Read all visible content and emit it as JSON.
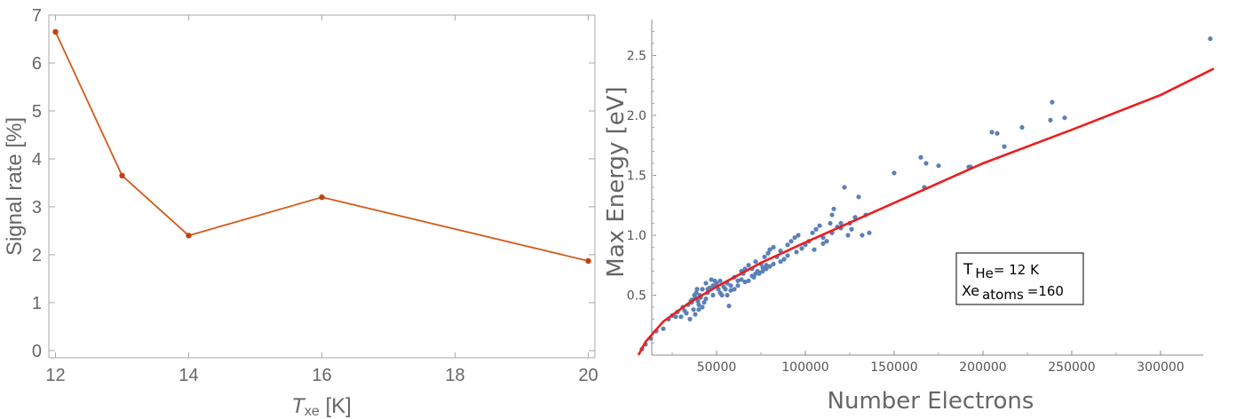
{
  "chart_data": [
    {
      "type": "line",
      "xlabel_main": "T",
      "xlabel_sub": "xe",
      "xlabel_unit": " [K]",
      "ylabel": "Signal rate [%]",
      "xlim": [
        11.9,
        20.1
      ],
      "ylim": [
        -0.15,
        7
      ],
      "xticks": [
        12,
        14,
        16,
        18,
        20
      ],
      "yticks": [
        0,
        1,
        2,
        3,
        4,
        5,
        6,
        7
      ],
      "color": "#d35a1c",
      "x": [
        12,
        13,
        14,
        16,
        20
      ],
      "y": [
        6.65,
        3.65,
        2.4,
        3.2,
        1.87
      ]
    },
    {
      "type": "scatter",
      "xlabel": "Number Electrons",
      "ylabel": "Max Energy [eV]",
      "xlim": [
        0,
        340000
      ],
      "ylim": [
        0,
        2.8
      ],
      "xticks": [
        50000,
        100000,
        150000,
        200000,
        250000,
        300000
      ],
      "xtick_labels": [
        "50000",
        "100000",
        "150000",
        "200000",
        "250000",
        "300000"
      ],
      "yticks": [
        0.5,
        1.0,
        1.5,
        2.0,
        2.5
      ],
      "ytick_labels": [
        "0.5",
        "1.0",
        "1.5",
        "2.0",
        "2.5"
      ],
      "point_color": "#5b80b8",
      "fit_color": "#ee1c1c",
      "fit_curve": {
        "x": [
          6000,
          10000,
          20000,
          35000,
          50000,
          75000,
          100000,
          150000,
          200000,
          250000,
          300000,
          330000
        ],
        "y": [
          0.0,
          0.11,
          0.28,
          0.44,
          0.57,
          0.77,
          0.94,
          1.27,
          1.6,
          1.88,
          2.17,
          2.39
        ]
      },
      "points": {
        "x": [
          8000,
          10000,
          13000,
          16000,
          20000,
          23000,
          25000,
          27000,
          28000,
          30000,
          31000,
          32000,
          33000,
          34000,
          35000,
          35500,
          36000,
          37000,
          37500,
          38000,
          38500,
          39000,
          39500,
          40000,
          40500,
          41000,
          42000,
          43000,
          44000,
          45000,
          46000,
          47000,
          48000,
          49000,
          50000,
          51000,
          52000,
          53000,
          54000,
          55000,
          56000,
          57000,
          58000,
          60000,
          62000,
          64000,
          65000,
          66000,
          68000,
          70000,
          71000,
          72000,
          73000,
          74000,
          75000,
          76000,
          77000,
          78000,
          79000,
          80000,
          82000,
          84000,
          86000,
          88000,
          90000,
          92000,
          94000,
          96000,
          98000,
          100000,
          102000,
          104000,
          106000,
          108000,
          110000,
          112000,
          114000,
          115000,
          116000,
          118000,
          120000,
          122000,
          124000,
          126000,
          128000,
          130000,
          132000,
          134000,
          136000,
          150000,
          165000,
          167000,
          168000,
          175000,
          192000,
          193000,
          205000,
          208000,
          212000,
          222000,
          238000,
          239000,
          246000,
          328000,
          36000,
          40000,
          44000,
          48000,
          52000,
          56000,
          60000,
          64000,
          68000,
          72000,
          76000,
          80000,
          45000,
          50000,
          38000,
          42000,
          58000,
          62000,
          66000,
          70000,
          74000,
          78000,
          82000,
          86000,
          90000,
          95000,
          105000,
          110000,
          115000,
          120000,
          125000
        ],
        "y": [
          0.05,
          0.09,
          0.14,
          0.2,
          0.22,
          0.3,
          0.33,
          0.32,
          0.36,
          0.32,
          0.4,
          0.37,
          0.35,
          0.42,
          0.3,
          0.45,
          0.46,
          0.38,
          0.5,
          0.48,
          0.52,
          0.55,
          0.45,
          0.42,
          0.5,
          0.48,
          0.55,
          0.44,
          0.6,
          0.52,
          0.56,
          0.63,
          0.58,
          0.62,
          0.6,
          0.55,
          0.62,
          0.5,
          0.57,
          0.55,
          0.6,
          0.41,
          0.58,
          0.65,
          0.62,
          0.7,
          0.68,
          0.72,
          0.75,
          0.72,
          0.65,
          0.78,
          0.7,
          0.68,
          0.76,
          0.73,
          0.82,
          0.75,
          0.85,
          0.88,
          0.9,
          0.82,
          0.87,
          0.8,
          0.92,
          0.95,
          0.98,
          1.0,
          0.89,
          0.92,
          0.95,
          1.02,
          1.05,
          1.08,
          0.93,
          0.95,
          1.1,
          1.17,
          1.22,
          1.07,
          1.1,
          1.4,
          1.0,
          1.05,
          1.15,
          1.32,
          1.0,
          1.17,
          1.02,
          1.52,
          1.65,
          1.4,
          1.6,
          1.58,
          1.57,
          1.57,
          1.86,
          1.85,
          1.74,
          1.9,
          1.96,
          2.11,
          1.98,
          2.64,
          0.44,
          0.38,
          0.47,
          0.5,
          0.52,
          0.5,
          0.55,
          0.63,
          0.62,
          0.68,
          0.7,
          0.74,
          0.55,
          0.58,
          0.34,
          0.4,
          0.54,
          0.58,
          0.61,
          0.66,
          0.69,
          0.72,
          0.76,
          0.78,
          0.83,
          0.86,
          0.88,
          0.98,
          1.02,
          1.06,
          1.1
        ]
      },
      "legend_line1_main": "T",
      "legend_line1_sub": "He",
      "legend_line1_rest": "= 12 K",
      "legend_line2_main": "Xe",
      "legend_line2_sub": "atoms",
      "legend_line2_rest": "=160"
    }
  ]
}
